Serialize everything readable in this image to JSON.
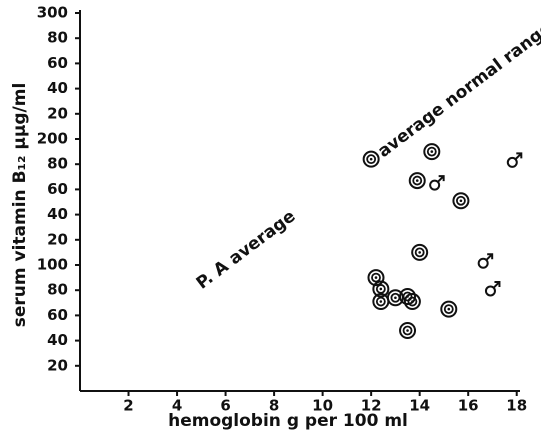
{
  "chart_data": {
    "type": "scatter",
    "xlabel": "hemoglobin g per 100 ml",
    "ylabel": "serum vitamin B₁₂ μμg/ml",
    "annotations": [
      "average normal range",
      "P. A average"
    ],
    "xlim": [
      0,
      18.3
    ],
    "xticks": [
      2,
      4,
      6,
      8,
      10,
      12,
      14,
      16,
      18
    ],
    "ylim": [
      0,
      300
    ],
    "yticks": [
      20,
      40,
      60,
      80,
      100,
      {
        "value": 120,
        "label": "20"
      },
      {
        "value": 140,
        "label": "40"
      },
      {
        "value": 160,
        "label": "60"
      },
      {
        "value": 180,
        "label": "80"
      },
      200,
      {
        "value": 220,
        "label": "20"
      },
      {
        "value": 240,
        "label": "40"
      },
      {
        "value": 260,
        "label": "60"
      },
      {
        "value": 280,
        "label": "80"
      },
      300
    ],
    "series": [
      {
        "marker": "circle",
        "color": "#111",
        "x": [
          12.0,
          14.5,
          13.9,
          15.7,
          14.0,
          12.2,
          12.4,
          12.4,
          13.0,
          13.5,
          13.7,
          15.2,
          13.5
        ],
        "values": [
          184,
          190,
          167,
          151,
          110,
          90,
          81,
          71,
          74,
          75,
          71,
          65,
          48
        ]
      },
      {
        "marker": "male",
        "color": "#111",
        "x": [
          14.7,
          17.9,
          16.7,
          17.0
        ],
        "values": [
          165,
          183,
          103,
          81
        ]
      }
    ]
  }
}
